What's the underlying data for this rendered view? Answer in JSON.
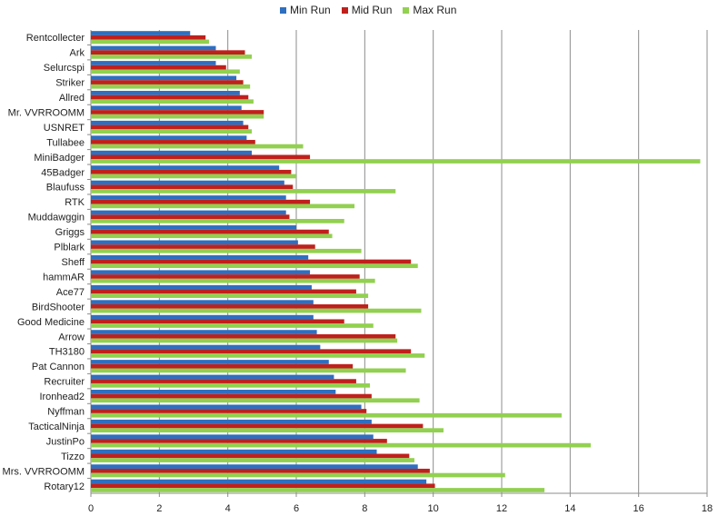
{
  "chart_data": {
    "type": "bar",
    "orientation": "horizontal",
    "categories": [
      "Rentcollecter",
      "Ark",
      "Selurcspi",
      "Striker",
      "Allred",
      "Mr. VVRROOMM",
      "USNRET",
      "Tullabee",
      "MiniBadger",
      "45Badger",
      "Blaufuss",
      "RTK",
      "Muddawggin",
      "Griggs",
      "Plblark",
      "Sheff",
      "hammAR",
      "Ace77",
      "BirdShooter",
      "Good Medicine",
      "Arrow",
      "TH3180",
      "Pat Cannon",
      "Recruiter",
      "Ironhead2",
      "Nyffman",
      "TacticalNinja",
      "JustinPo",
      "Tizzo",
      "Mrs. VVRROOMM",
      "Rotary12"
    ],
    "series": [
      {
        "name": "Min Run",
        "color": "#2E6FC0",
        "values": [
          2.9,
          3.65,
          3.65,
          4.25,
          4.35,
          4.4,
          4.45,
          4.55,
          4.7,
          5.5,
          5.65,
          5.7,
          5.7,
          6.0,
          6.05,
          6.35,
          6.4,
          6.45,
          6.5,
          6.5,
          6.6,
          6.7,
          6.95,
          7.1,
          7.15,
          7.9,
          8.2,
          8.25,
          8.35,
          9.55,
          9.8
        ]
      },
      {
        "name": "Mid Run",
        "color": "#C0201C",
        "values": [
          3.35,
          4.5,
          3.95,
          4.45,
          4.6,
          5.05,
          4.6,
          4.8,
          6.4,
          5.85,
          5.9,
          6.4,
          5.8,
          6.95,
          6.55,
          9.35,
          7.85,
          7.75,
          8.1,
          7.4,
          8.9,
          9.35,
          7.65,
          7.75,
          8.2,
          8.05,
          9.7,
          8.65,
          9.3,
          9.9,
          10.05
        ]
      },
      {
        "name": "Max Run",
        "color": "#92D050",
        "values": [
          3.45,
          4.7,
          4.35,
          4.65,
          4.75,
          5.05,
          4.7,
          6.2,
          17.8,
          6.0,
          8.9,
          7.7,
          7.4,
          7.05,
          7.9,
          9.55,
          8.3,
          8.1,
          9.65,
          8.25,
          8.95,
          9.75,
          9.2,
          8.15,
          9.6,
          13.75,
          10.3,
          14.6,
          9.45,
          12.1,
          13.25
        ]
      }
    ],
    "xlim": [
      0,
      18
    ],
    "xticks": [
      "0",
      "2",
      "4",
      "6",
      "8",
      "10",
      "12",
      "14",
      "16",
      "18"
    ],
    "grid": "vertical",
    "legend_position": "top-center"
  }
}
